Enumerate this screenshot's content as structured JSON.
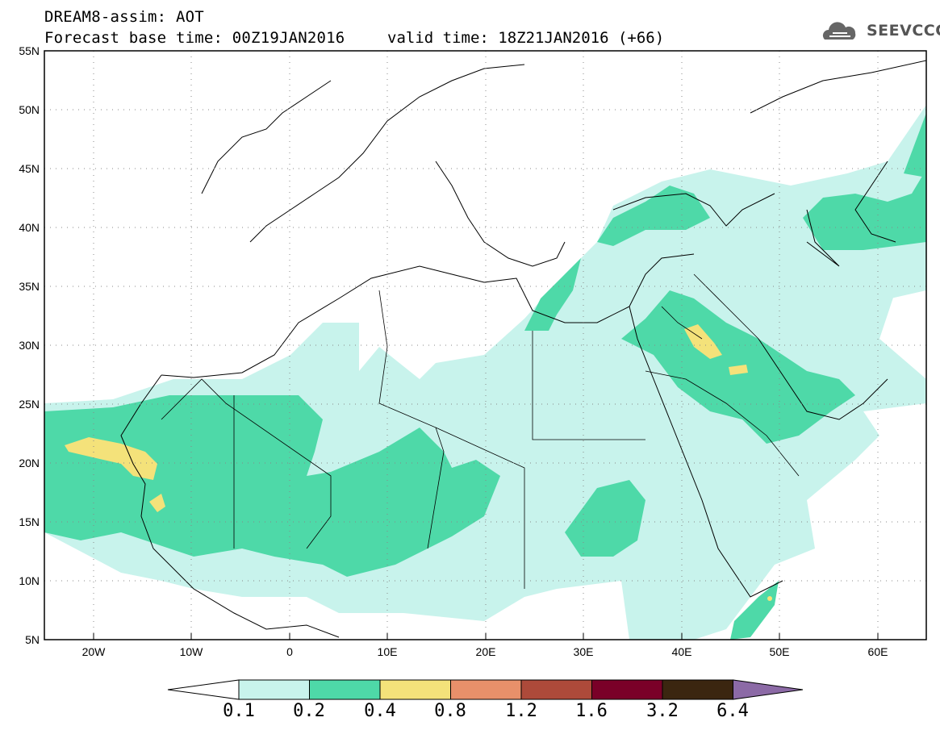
{
  "header": {
    "title": "DREAM8-assim: AOT",
    "base_time": "Forecast base time: 00Z19JAN2016",
    "valid_time": "valid time: 18Z21JAN2016 (+66)"
  },
  "logo": {
    "text": "SEEVCCC",
    "icon": "cloud-icon"
  },
  "map": {
    "extent": {
      "lon": [
        -25,
        65
      ],
      "lat": [
        5,
        55
      ]
    },
    "lat_labels": [
      "55N",
      "50N",
      "45N",
      "40N",
      "35N",
      "30N",
      "25N",
      "20N",
      "15N",
      "10N",
      "5N"
    ],
    "lon_labels": [
      "20W",
      "10W",
      "0",
      "10E",
      "20E",
      "30E",
      "40E",
      "50E",
      "60E"
    ],
    "grid": "dotted"
  },
  "colorbar": {
    "labels": [
      "0.1",
      "0.2",
      "0.4",
      "0.8",
      "1.2",
      "1.6",
      "3.2",
      "6.4"
    ],
    "colors": [
      "#c8f3ec",
      "#4ed9a8",
      "#f4e27a",
      "#e8906a",
      "#ad4a3a",
      "#7a0028",
      "#3b2610",
      "#8c6aa6"
    ]
  },
  "colors": {
    "aot_01": "#c8f3ec",
    "aot_02": "#4ed9a8",
    "aot_04": "#f4e27a",
    "coast": "#000000"
  }
}
